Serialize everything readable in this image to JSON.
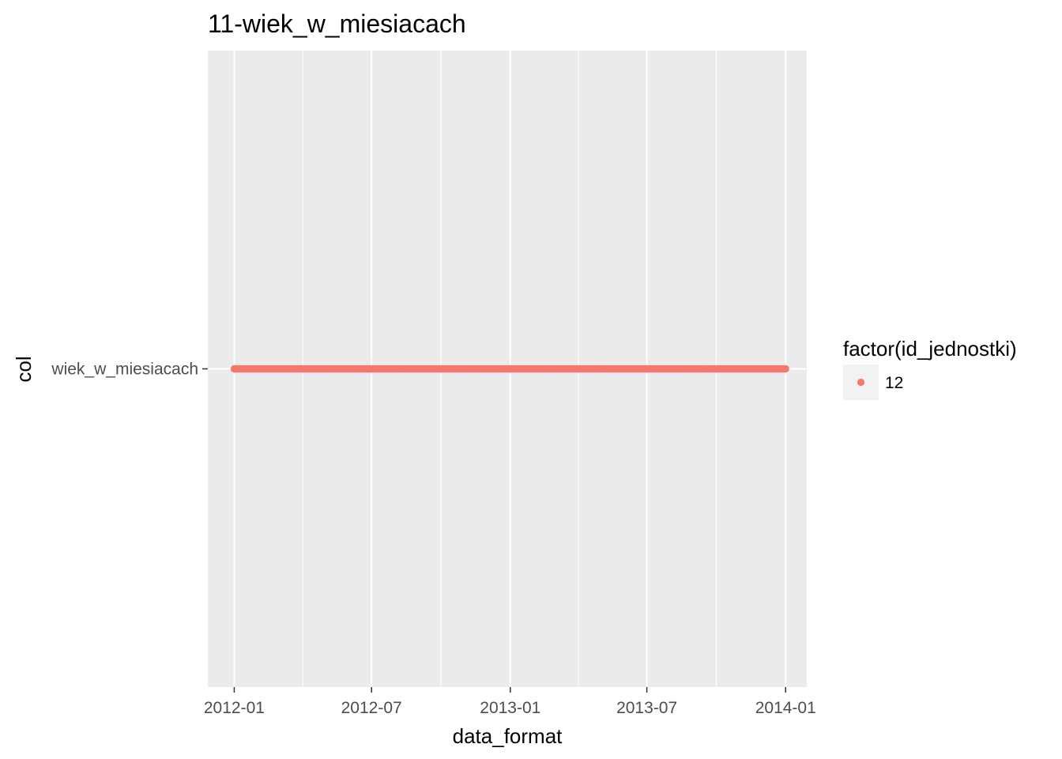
{
  "chart_data": {
    "type": "scatter",
    "title": "11-wiek_w_miesiacach",
    "xlabel": "data_format",
    "ylabel": "col",
    "x_axis": {
      "type": "date",
      "range": [
        "2011-11-27",
        "2014-01-29"
      ],
      "ticks": [
        "2012-01",
        "2012-07",
        "2013-01",
        "2013-07",
        "2014-01"
      ],
      "minor_ticks": [
        "2012-04",
        "2012-10",
        "2013-04",
        "2013-10"
      ]
    },
    "y_axis": {
      "type": "categorical",
      "categories": [
        "wiek_w_miesiacach"
      ]
    },
    "series": [
      {
        "name": "12",
        "color": "#F8766D",
        "category": "wiek_w_miesiacach",
        "x_start": "2012-01-01",
        "x_end": "2014-01-01",
        "frequency": "daily"
      }
    ],
    "legend": {
      "title": "factor(id_jednostki)",
      "placement": "right",
      "entries": [
        "12"
      ]
    },
    "grid": true,
    "panel_background": "#EBEBEB",
    "grid_color": "#FFFFFF"
  }
}
